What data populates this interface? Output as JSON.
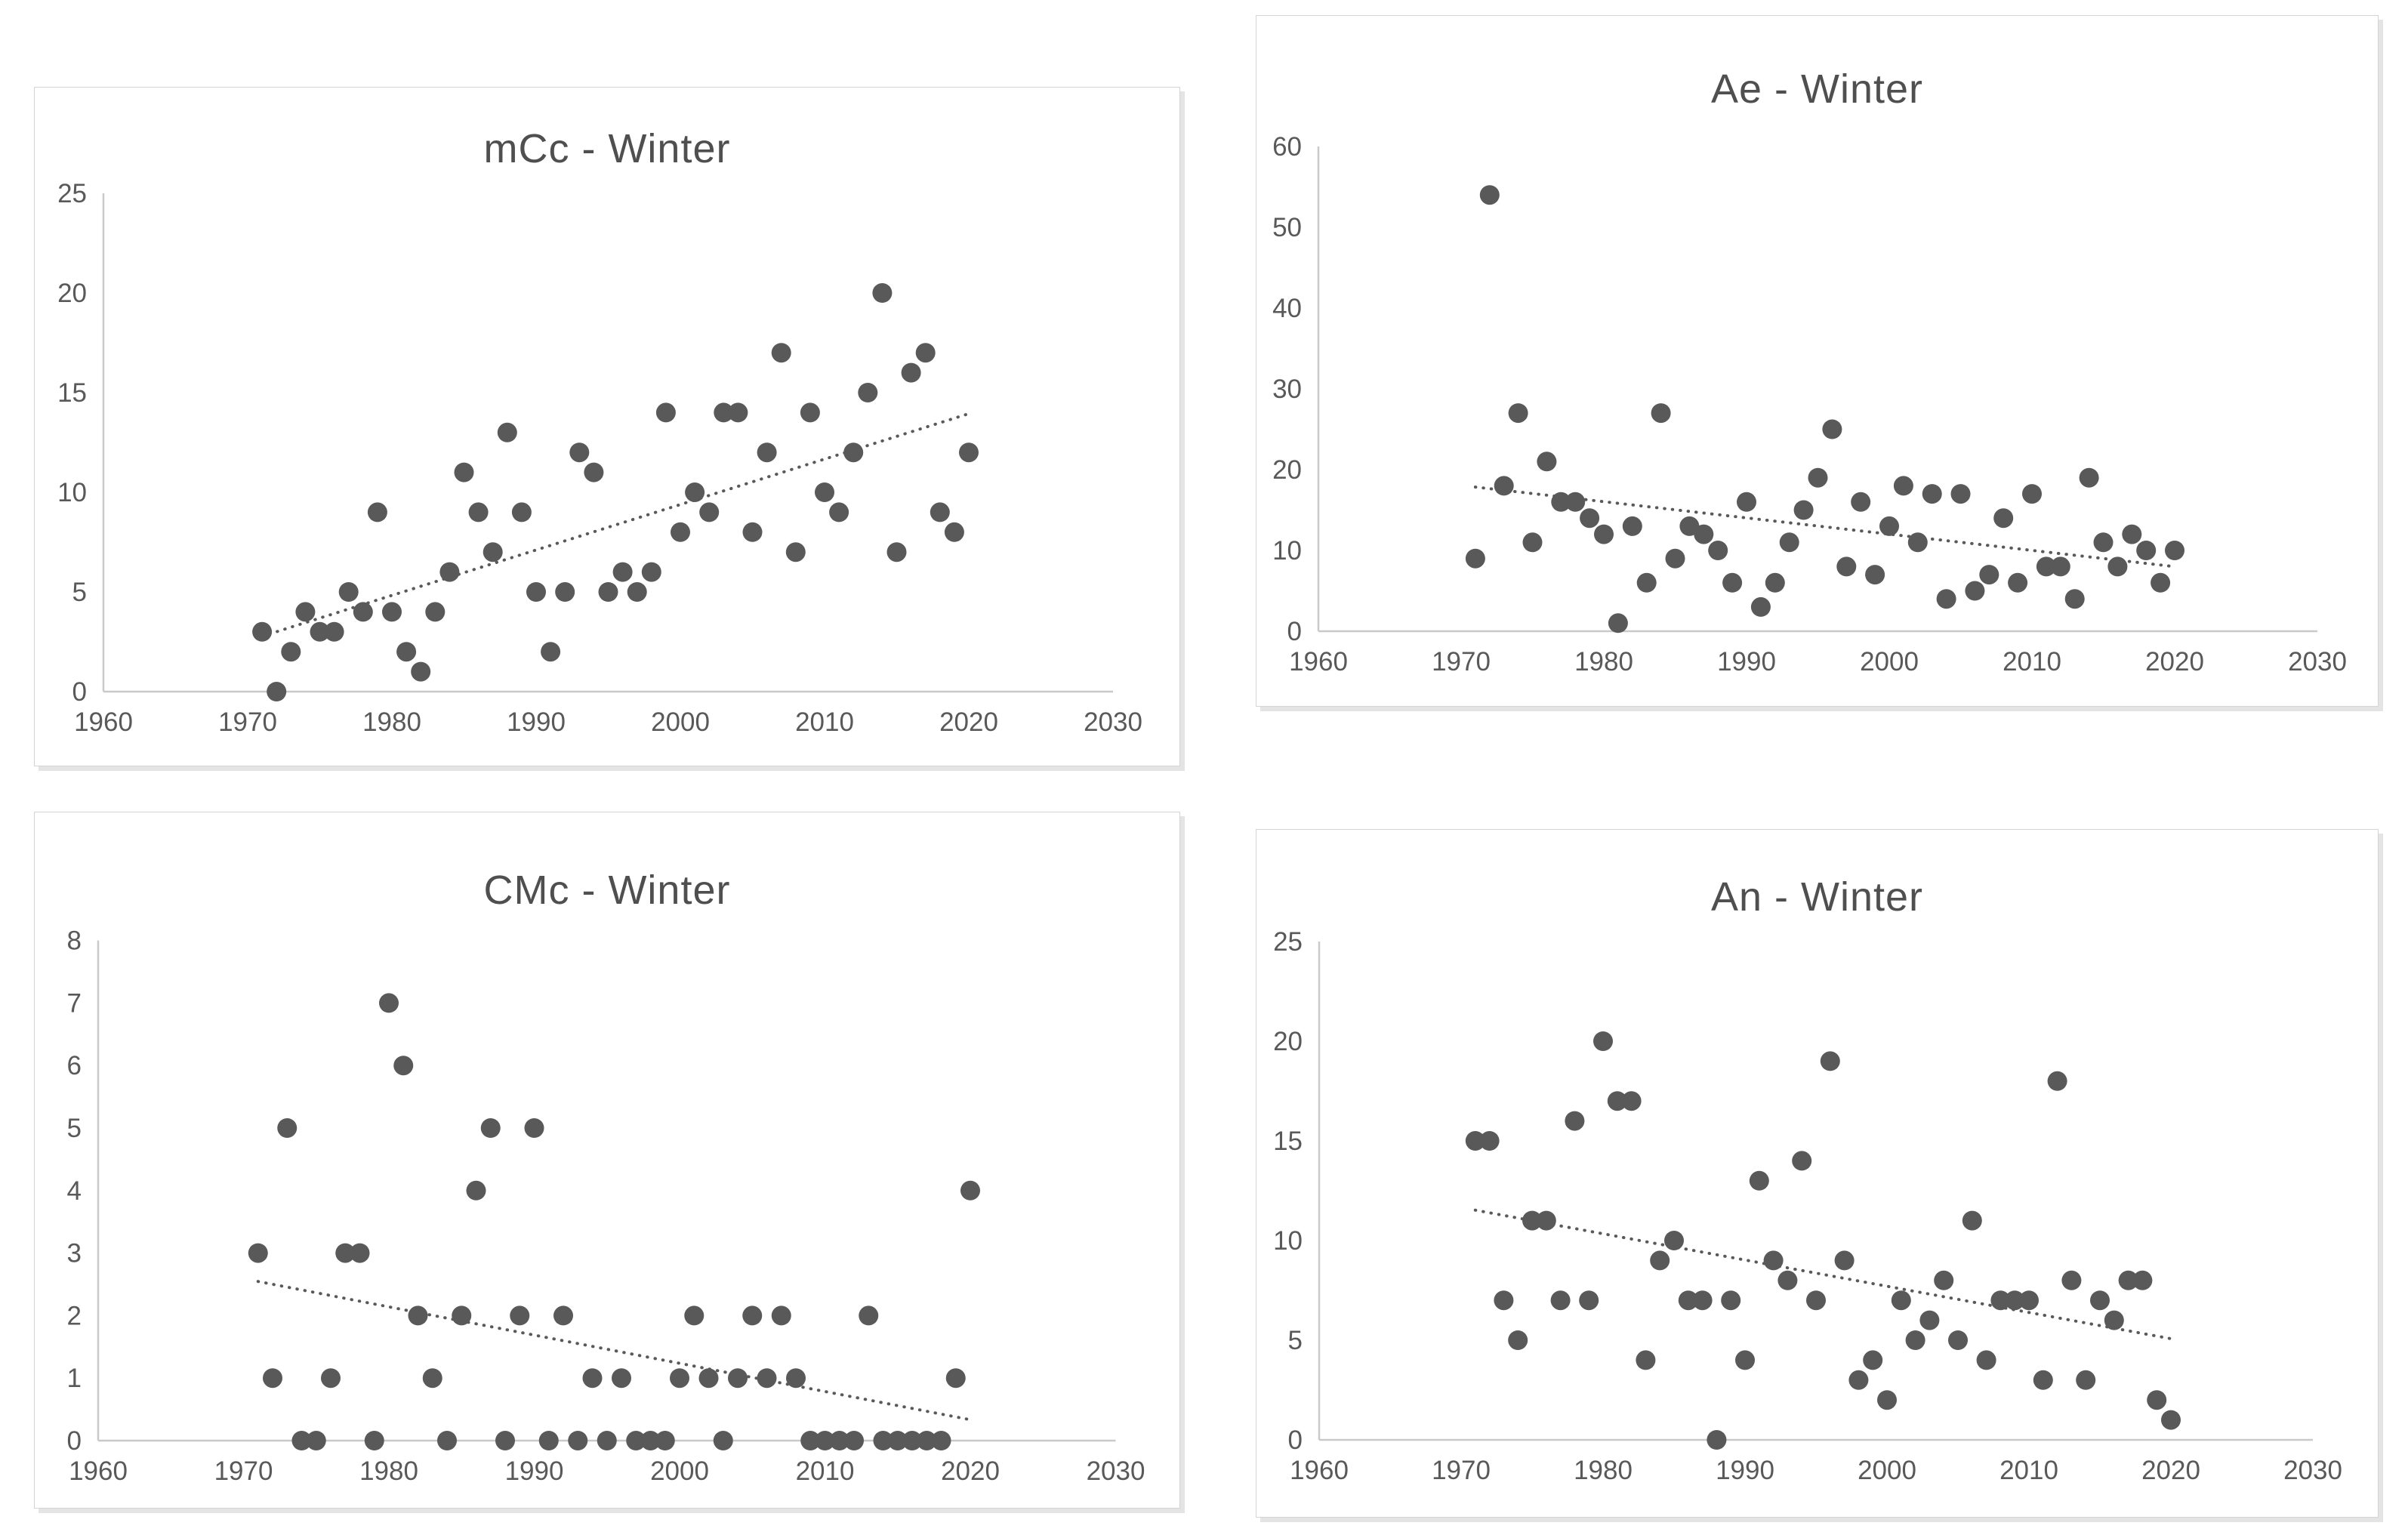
{
  "page": {
    "background": "#ffffff"
  },
  "colors": {
    "point": "#595959",
    "trend_line": "#595959",
    "axis_line": "#C9C9C9",
    "tick_label": "#595959",
    "title": "#4F4F4F",
    "panel_border": "#D4D4D4",
    "panel_shadow": "#E4E4E4"
  },
  "chart_data": [
    {
      "id": "mcc-winter",
      "type": "scatter",
      "title": "mCc - Winter",
      "xlabel": "",
      "ylabel": "",
      "xlim": [
        1960,
        2030
      ],
      "ylim": [
        0,
        25
      ],
      "xticks": [
        1960,
        1970,
        1980,
        1990,
        2000,
        2010,
        2020,
        2030
      ],
      "yticks": [
        0,
        5,
        10,
        15,
        20,
        25
      ],
      "grid": false,
      "legend": "none",
      "trendline": "linear-dotted",
      "x": [
        1971,
        1972,
        1973,
        1974,
        1975,
        1976,
        1977,
        1978,
        1979,
        1980,
        1981,
        1982,
        1983,
        1984,
        1985,
        1986,
        1987,
        1988,
        1989,
        1990,
        1991,
        1992,
        1993,
        1994,
        1995,
        1996,
        1997,
        1998,
        1999,
        2000,
        2001,
        2002,
        2003,
        2004,
        2005,
        2006,
        2007,
        2008,
        2009,
        2010,
        2011,
        2012,
        2013,
        2014,
        2015,
        2016,
        2017,
        2018,
        2019,
        2020
      ],
      "values": [
        3,
        0,
        2,
        4,
        3,
        3,
        5,
        4,
        9,
        4,
        2,
        1,
        4,
        6,
        11,
        9,
        7,
        13,
        9,
        5,
        2,
        5,
        12,
        11,
        5,
        6,
        5,
        6,
        14,
        8,
        10,
        9,
        14,
        14,
        8,
        12,
        17,
        7,
        14,
        10,
        9,
        12,
        15,
        20,
        7,
        16,
        17,
        9,
        8,
        12
      ]
    },
    {
      "id": "ae-winter",
      "type": "scatter",
      "title": "Ae - Winter",
      "xlabel": "",
      "ylabel": "",
      "xlim": [
        1960,
        2030
      ],
      "ylim": [
        0,
        60
      ],
      "xticks": [
        1960,
        1970,
        1980,
        1990,
        2000,
        2010,
        2020,
        2030
      ],
      "yticks": [
        0,
        10,
        20,
        30,
        40,
        50,
        60
      ],
      "grid": false,
      "legend": "none",
      "trendline": "linear-dotted",
      "x": [
        1971,
        1972,
        1973,
        1974,
        1975,
        1976,
        1977,
        1978,
        1979,
        1980,
        1981,
        1982,
        1983,
        1984,
        1985,
        1986,
        1987,
        1988,
        1989,
        1990,
        1991,
        1992,
        1993,
        1994,
        1995,
        1996,
        1997,
        1998,
        1999,
        2000,
        2001,
        2002,
        2003,
        2004,
        2005,
        2006,
        2007,
        2008,
        2009,
        2010,
        2011,
        2012,
        2013,
        2014,
        2015,
        2016,
        2017,
        2018,
        2019,
        2020
      ],
      "values": [
        9,
        54,
        18,
        27,
        11,
        21,
        16,
        16,
        14,
        12,
        1,
        13,
        6,
        27,
        9,
        13,
        12,
        10,
        6,
        16,
        3,
        6,
        11,
        15,
        19,
        25,
        8,
        16,
        7,
        13,
        18,
        11,
        17,
        4,
        17,
        5,
        7,
        14,
        6,
        17,
        8,
        8,
        4,
        19,
        11,
        8,
        12,
        10,
        6,
        10
      ]
    },
    {
      "id": "cmc-winter",
      "type": "scatter",
      "title": "CMc - Winter",
      "xlabel": "",
      "ylabel": "",
      "xlim": [
        1960,
        2030
      ],
      "ylim": [
        0,
        8
      ],
      "xticks": [
        1960,
        1970,
        1980,
        1990,
        2000,
        2010,
        2020,
        2030
      ],
      "yticks": [
        0,
        1,
        2,
        3,
        4,
        5,
        6,
        7,
        8
      ],
      "grid": false,
      "legend": "none",
      "trendline": "linear-dotted",
      "x": [
        1971,
        1972,
        1973,
        1974,
        1975,
        1976,
        1977,
        1978,
        1979,
        1980,
        1981,
        1982,
        1983,
        1984,
        1985,
        1986,
        1987,
        1988,
        1989,
        1990,
        1991,
        1992,
        1993,
        1994,
        1995,
        1996,
        1997,
        1998,
        1999,
        2000,
        2001,
        2002,
        2003,
        2004,
        2005,
        2006,
        2007,
        2008,
        2009,
        2010,
        2011,
        2012,
        2013,
        2014,
        2015,
        2016,
        2017,
        2018,
        2019,
        2020
      ],
      "values": [
        3,
        1,
        5,
        0,
        0,
        1,
        3,
        3,
        0,
        7,
        6,
        2,
        1,
        0,
        2,
        4,
        5,
        0,
        2,
        5,
        0,
        2,
        0,
        1,
        0,
        1,
        0,
        0,
        0,
        1,
        2,
        1,
        0,
        1,
        2,
        1,
        2,
        1,
        0,
        0,
        0,
        0,
        2,
        0,
        0,
        0,
        0,
        0,
        1,
        4
      ]
    },
    {
      "id": "an-winter",
      "type": "scatter",
      "title": "An - Winter",
      "xlabel": "",
      "ylabel": "",
      "xlim": [
        1960,
        2030
      ],
      "ylim": [
        0,
        25
      ],
      "xticks": [
        1960,
        1970,
        1980,
        1990,
        2000,
        2010,
        2020,
        2030
      ],
      "yticks": [
        0,
        5,
        10,
        15,
        20,
        25
      ],
      "grid": false,
      "legend": "none",
      "trendline": "linear-dotted",
      "x": [
        1971,
        1972,
        1973,
        1974,
        1975,
        1976,
        1977,
        1978,
        1979,
        1980,
        1981,
        1982,
        1983,
        1984,
        1985,
        1986,
        1987,
        1988,
        1989,
        1990,
        1991,
        1992,
        1993,
        1994,
        1995,
        1996,
        1997,
        1998,
        1999,
        2000,
        2001,
        2002,
        2003,
        2004,
        2005,
        2006,
        2007,
        2008,
        2009,
        2010,
        2011,
        2012,
        2013,
        2014,
        2015,
        2016,
        2017,
        2018,
        2019,
        2020
      ],
      "values": [
        15,
        15,
        7,
        5,
        11,
        11,
        7,
        16,
        7,
        20,
        17,
        17,
        4,
        9,
        10,
        7,
        7,
        0,
        7,
        4,
        13,
        9,
        8,
        14,
        7,
        19,
        9,
        3,
        4,
        2,
        7,
        5,
        6,
        8,
        5,
        11,
        4,
        7,
        7,
        7,
        3,
        18,
        8,
        3,
        7,
        6,
        8,
        8,
        2,
        1
      ]
    }
  ]
}
